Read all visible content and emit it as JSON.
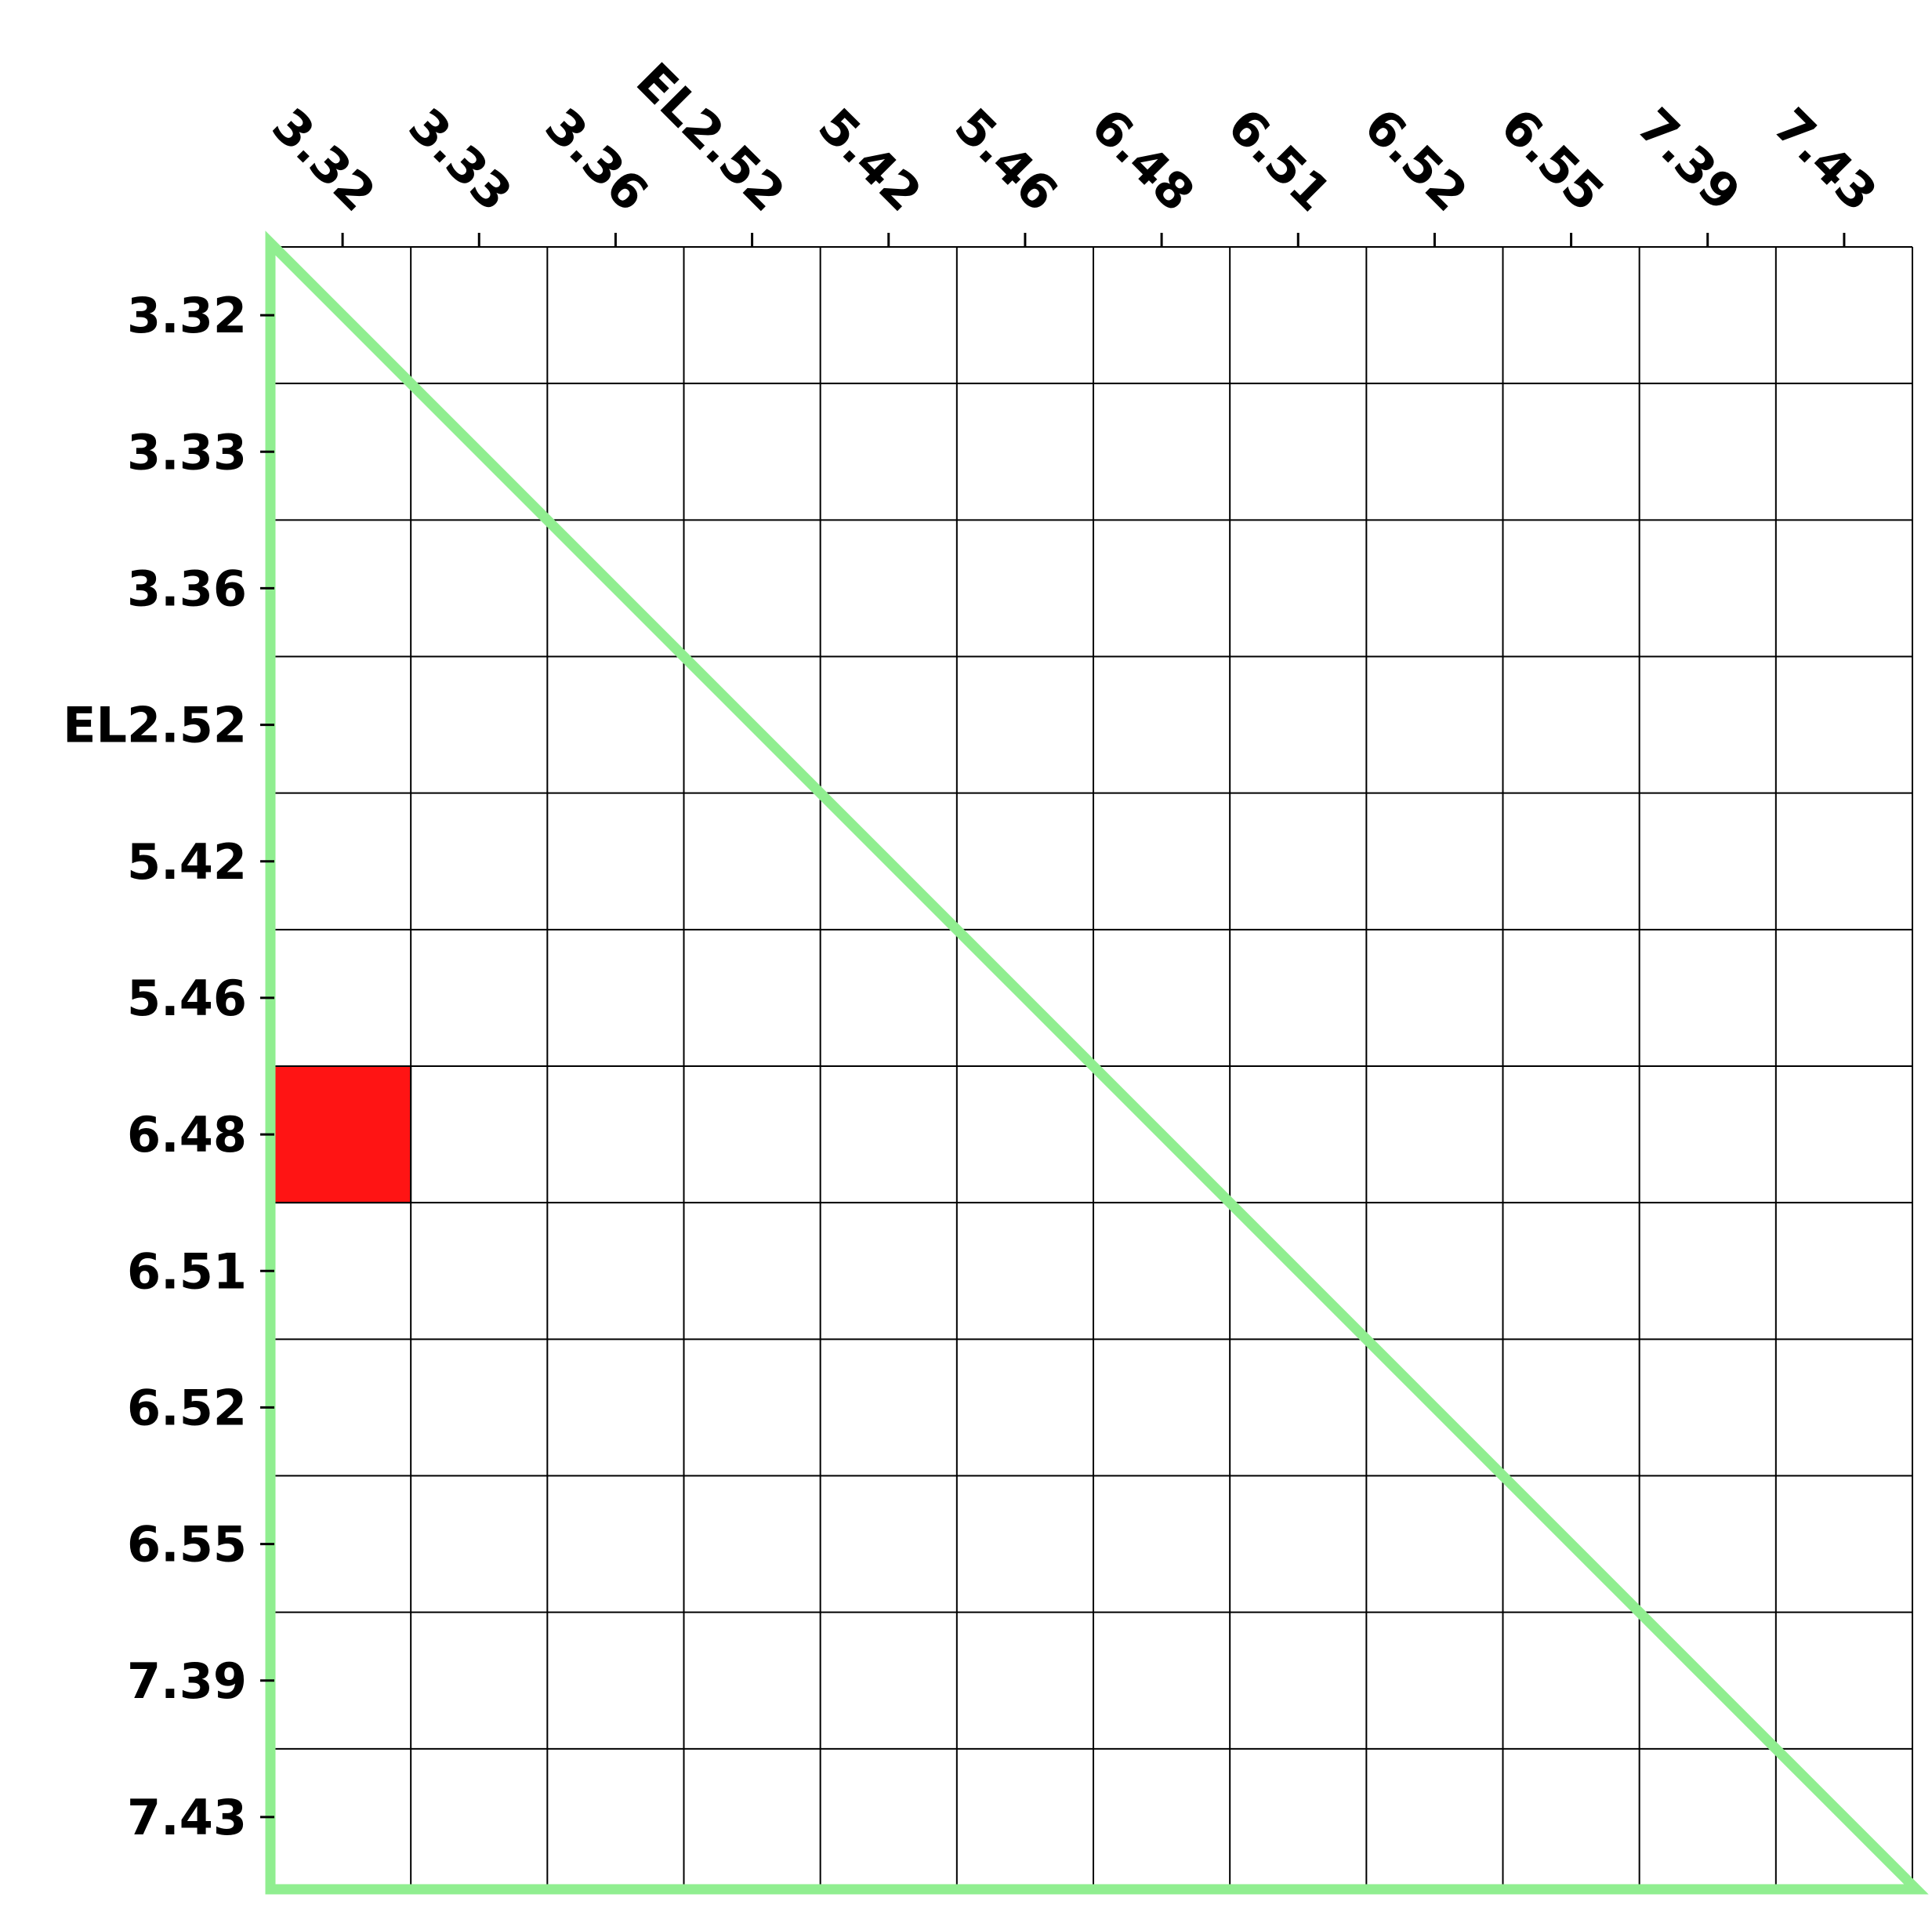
{
  "chart_data": {
    "type": "heatmap",
    "x_labels": [
      "3.32",
      "3.33",
      "3.36",
      "EL2.52",
      "5.42",
      "5.46",
      "6.48",
      "6.51",
      "6.52",
      "6.55",
      "7.39",
      "7.43"
    ],
    "y_labels": [
      "3.32",
      "3.33",
      "3.36",
      "EL2.52",
      "5.42",
      "5.46",
      "6.48",
      "6.51",
      "6.52",
      "6.55",
      "7.39",
      "7.43"
    ],
    "highlighted_cells": [
      {
        "row": "6.48",
        "col": "3.32",
        "color": "#ff1414"
      }
    ],
    "x_axis_position": "top",
    "grid": true,
    "overlay": {
      "shape": "lower-triangle",
      "color": "#90ee90"
    },
    "colors": {
      "cell": "#ffffff",
      "grid": "#000000"
    }
  }
}
